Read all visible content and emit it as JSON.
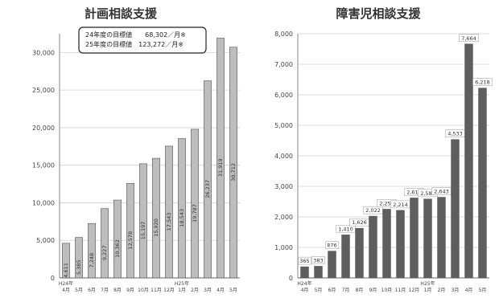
{
  "chart_data": [
    {
      "type": "bar",
      "title": "計画相談支援",
      "categories": [
        "H24年\n4月",
        "5月",
        "6月",
        "7月",
        "8月",
        "9月",
        "10月",
        "11月",
        "12月",
        "H25年\n1月",
        "2月",
        "3月",
        "4月",
        "5月"
      ],
      "x_tick_labels": [
        "4月",
        "5月",
        "6月",
        "7月",
        "8月",
        "9月",
        "10月",
        "11月",
        "12月",
        "1月",
        "2月",
        "3月",
        "4月",
        "5月"
      ],
      "era_labels": [
        {
          "text": "H24年",
          "index": 0
        },
        {
          "text": "H25年",
          "index": 9
        }
      ],
      "values": [
        4611,
        5385,
        7248,
        9227,
        10362,
        12578,
        15197,
        15920,
        17543,
        18543,
        19787,
        26237,
        31919,
        30712
      ],
      "value_labels": [
        "4,611",
        "5,385",
        "7,248",
        "9,227",
        "10,362",
        "12,578",
        "15,197",
        "15,920",
        "17,543",
        "18,543",
        "19,787",
        "26,237",
        "31,919",
        "30,712"
      ],
      "ylim": [
        0,
        32500
      ],
      "y_ticks": [
        0,
        5000,
        10000,
        15000,
        20000,
        25000,
        30000
      ],
      "y_tick_labels": [
        "0",
        "5,000",
        "10,000",
        "15,000",
        "20,000",
        "25,000",
        "30,000"
      ],
      "grid": true,
      "bar_color": "#bdbdbd",
      "annotation": [
        "24年度の目標値　　68,302／月※",
        "25年度の目標値　123,272／月※"
      ]
    },
    {
      "type": "bar",
      "title": "障害児相談支援",
      "categories": [
        "H24年\n4月",
        "5月",
        "6月",
        "7月",
        "8月",
        "9月",
        "10月",
        "11月",
        "12月",
        "H25年\n1月",
        "2月",
        "3月",
        "4月",
        "5月"
      ],
      "x_tick_labels": [
        "4月",
        "5月",
        "6月",
        "7月",
        "8月",
        "9月",
        "10月",
        "11月",
        "12月",
        "1月",
        "2月",
        "3月",
        "4月",
        "5月"
      ],
      "era_labels": [
        {
          "text": "H24年",
          "index": 0
        },
        {
          "text": "H25年",
          "index": 9
        }
      ],
      "values": [
        365,
        383,
        876,
        1410,
        1626,
        2022,
        2251,
        2214,
        2619,
        2583,
        2643,
        4533,
        7664,
        6218
      ],
      "value_labels": [
        "365",
        "383",
        "876",
        "1,410",
        "1,626",
        "2,022",
        "2,251",
        "2,214",
        "2,619",
        "2,583",
        "2,643",
        "4,533",
        "7,664",
        "6,218"
      ],
      "ylim": [
        0,
        8000
      ],
      "y_ticks": [
        0,
        1000,
        2000,
        3000,
        4000,
        5000,
        6000,
        7000,
        8000
      ],
      "y_tick_labels": [
        "0",
        "1,000",
        "2,000",
        "3,000",
        "4,000",
        "5,000",
        "6,000",
        "7,000",
        "8,000"
      ],
      "grid": true,
      "bar_color": "#5e5e5e"
    }
  ]
}
